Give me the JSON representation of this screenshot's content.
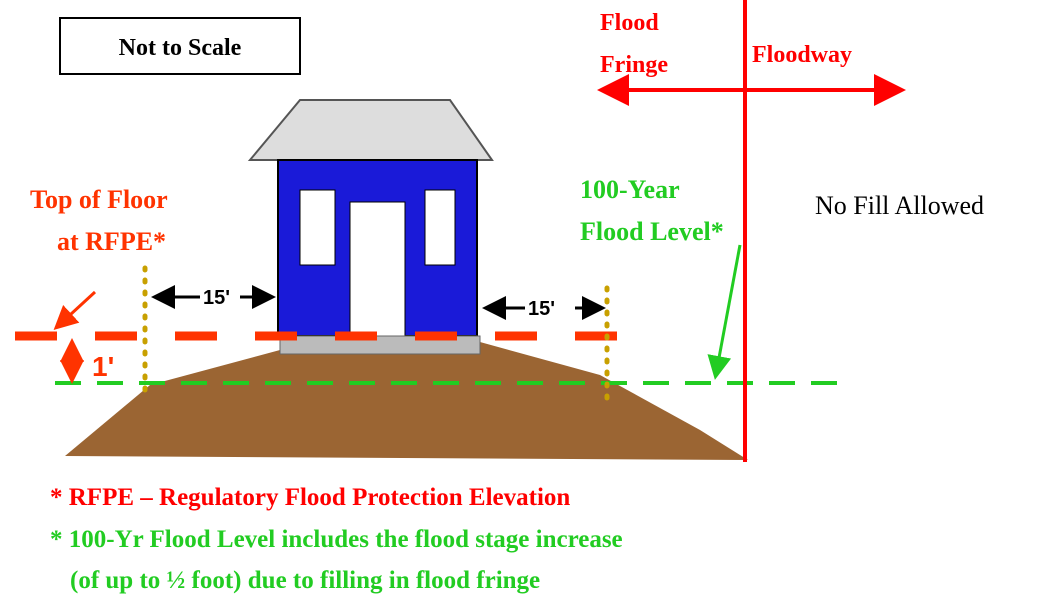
{
  "label_box": "Not to Scale",
  "fringe_label": [
    "Flood",
    "Fringe"
  ],
  "floodway_label": "Floodway",
  "floor_label": [
    "Top of Floor",
    "at RFPE*"
  ],
  "flood_level_label": [
    "100-Year",
    "Flood Level*"
  ],
  "no_fill_label": "No Fill Allowed",
  "setback_left": "15'",
  "setback_right": "15'",
  "freeboard": "1'",
  "footnotes": [
    "* RFPE – Regulatory Flood Protection Elevation",
    "* 100-Yr Flood Level includes the flood stage increase",
    "(of up to ½ foot) due to filling in flood fringe"
  ]
}
